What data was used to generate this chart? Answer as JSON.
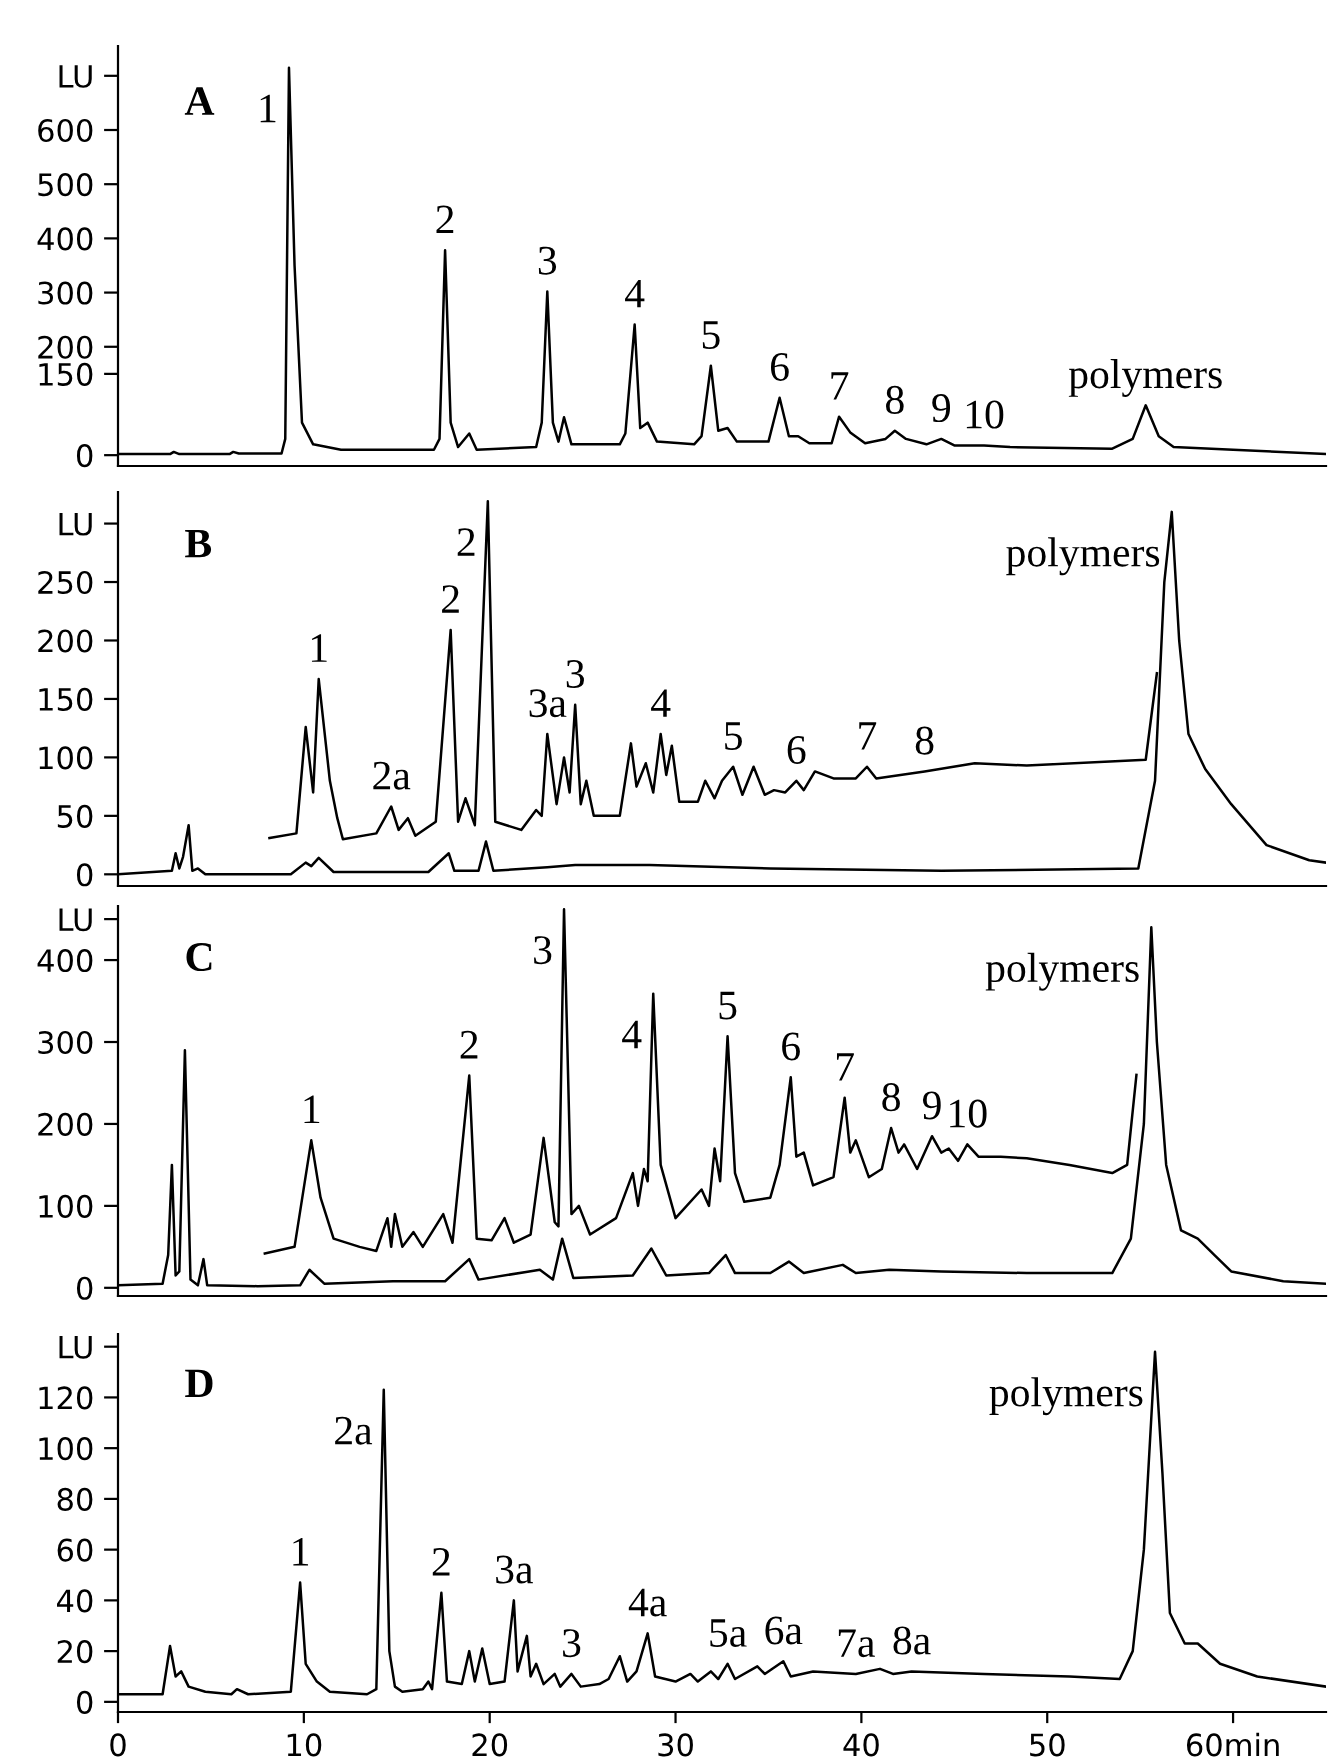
{
  "chart_data": [
    {
      "type": "line",
      "title": "A",
      "xlim": [
        0,
        65
      ],
      "ylim": [
        -20,
        755
      ],
      "tick_labels": "y",
      "yticks": [
        0,
        150,
        200,
        300,
        400,
        500,
        600,
        {
          "value": 700,
          "label": "LU"
        }
      ],
      "series": [
        {
          "color": "#000000",
          "x": [
            0,
            2.8,
            3.0,
            3.3,
            6.0,
            6.2,
            6.5,
            8.8,
            9.0,
            9.2,
            9.5,
            9.9,
            10.5,
            12,
            17.0,
            17.3,
            17.6,
            17.9,
            18.3,
            18.9,
            19.3,
            22.5,
            22.8,
            23.1,
            23.4,
            23.7,
            24.0,
            24.4,
            27.0,
            27.3,
            27.8,
            28.1,
            28.5,
            29.0,
            31.0,
            31.4,
            31.9,
            32.3,
            32.8,
            33.3,
            35.0,
            35.6,
            36.1,
            36.6,
            37.2,
            38.4,
            38.8,
            39.4,
            40.2,
            41.3,
            41.8,
            42.4,
            43.5,
            44.3,
            45.0,
            46.6,
            48,
            53.5,
            54.6,
            55.3,
            56.0,
            56.8,
            60,
            65
          ],
          "values": [
            2,
            2,
            6,
            2,
            2,
            6,
            3,
            3,
            30,
            715,
            350,
            60,
            20,
            10,
            10,
            30,
            378,
            60,
            15,
            40,
            10,
            15,
            60,
            302,
            60,
            25,
            70,
            20,
            20,
            40,
            241,
            50,
            60,
            25,
            20,
            35,
            165,
            45,
            50,
            25,
            25,
            106,
            35,
            35,
            22,
            22,
            71,
            42,
            22,
            30,
            45,
            30,
            20,
            30,
            18,
            18,
            15,
            12,
            30,
            92,
            35,
            15,
            10,
            2
          ]
        }
      ],
      "annotations": [
        {
          "text": "1",
          "x": 9.2,
          "y": 715
        },
        {
          "text": "2",
          "x": 17.6,
          "y": 378
        },
        {
          "text": "3",
          "x": 23.1,
          "y": 302
        },
        {
          "text": "4",
          "x": 27.8,
          "y": 241
        },
        {
          "text": "5",
          "x": 31.9,
          "y": 165
        },
        {
          "text": "6",
          "x": 35.6,
          "y": 106
        },
        {
          "text": "7",
          "x": 38.8,
          "y": 71
        },
        {
          "text": "8",
          "x": 41.8,
          "y": 45
        },
        {
          "text": "9",
          "x": 44.3,
          "y": 30
        },
        {
          "text": "10",
          "x": 46.6,
          "y": 18
        },
        {
          "text": "polymers",
          "x": 55.3,
          "y": 92
        }
      ]
    },
    {
      "type": "line",
      "title": "B",
      "xlim": [
        0,
        65
      ],
      "ylim": [
        -10,
        327
      ],
      "tick_labels": "y",
      "yticks": [
        0,
        50,
        100,
        150,
        200,
        250,
        {
          "value": 300,
          "label": "LU"
        }
      ],
      "series": [
        {
          "color": "#000000",
          "x": [
            8.15,
            9.6,
            10.1,
            10.5,
            10.8,
            11.4,
            11.8,
            12.1,
            13.9,
            14.7,
            15.1,
            15.6,
            16.0,
            17.1,
            17.9,
            18.3,
            18.7,
            19.2,
            19.9,
            20.3,
            21.7,
            22.5,
            22.8,
            23.1,
            23.6,
            24.0,
            24.3,
            24.6,
            24.9,
            25.2,
            25.6,
            27.0,
            27.6,
            27.9,
            28.4,
            28.8,
            29.2,
            29.5,
            29.8,
            30.2,
            31.2,
            31.6,
            32.1,
            32.5,
            33.1,
            33.6,
            34.2,
            34.8,
            35.3,
            35.9,
            36.5,
            36.9,
            37.5,
            38.5,
            39.7,
            40.3,
            40.8,
            43.4,
            46.1,
            48.9,
            55.3,
            55.9
          ],
          "values": [
            31,
            35,
            126,
            70,
            167,
            80,
            48,
            30,
            35,
            58,
            38,
            48,
            33,
            45,
            209,
            45,
            65,
            42,
            319,
            45,
            38,
            55,
            50,
            120,
            60,
            100,
            70,
            145,
            60,
            80,
            50,
            50,
            112,
            75,
            95,
            70,
            120,
            85,
            110,
            62,
            62,
            80,
            65,
            80,
            92,
            68,
            92,
            68,
            72,
            70,
            80,
            72,
            88,
            82,
            82,
            92,
            82,
            88,
            95,
            93,
            98,
            172
          ]
        },
        {
          "color": "#000000",
          "x": [
            0,
            2.9,
            3.1,
            3.3,
            3.5,
            3.8,
            4.0,
            4.3,
            4.7,
            9.3,
            10.1,
            10.4,
            10.8,
            11.6,
            16.7,
            17.8,
            18.1,
            19.4,
            19.8,
            20.2,
            23.1,
            24.6,
            28.6,
            35.1,
            44.3,
            54.9,
            55.8,
            56.3,
            56.7,
            57.1,
            57.6,
            58.5,
            59.9,
            61.8,
            64.1,
            65
          ],
          "values": [
            0,
            3,
            18,
            5,
            15,
            42,
            3,
            5,
            0,
            0,
            10,
            7,
            14,
            2,
            2,
            18,
            3,
            3,
            28,
            3,
            6,
            8,
            8,
            5,
            3,
            5,
            80,
            250,
            310,
            200,
            120,
            90,
            60,
            25,
            12,
            10
          ]
        }
      ],
      "annotations": [
        {
          "text": "1",
          "x": 10.8,
          "y": 167
        },
        {
          "text": "2a",
          "x": 14.7,
          "y": 58
        },
        {
          "text": "2",
          "x": 17.9,
          "y": 209
        },
        {
          "text": "2",
          "x": 19.9,
          "y": 319
        },
        {
          "text": "3a",
          "x": 23.1,
          "y": 120
        },
        {
          "text": "3",
          "x": 24.6,
          "y": 145
        },
        {
          "text": "4",
          "x": 29.2,
          "y": 120
        },
        {
          "text": "5",
          "x": 33.1,
          "y": 92
        },
        {
          "text": "6",
          "x": 36.5,
          "y": 80
        },
        {
          "text": "7",
          "x": 40.3,
          "y": 92
        },
        {
          "text": "8",
          "x": 43.4,
          "y": 88
        },
        {
          "text": "polymers",
          "x": 56.7,
          "y": 310
        }
      ]
    },
    {
      "type": "line",
      "title": "C",
      "xlim": [
        0,
        65
      ],
      "ylim": [
        -10,
        466
      ],
      "tick_labels": "y",
      "yticks": [
        0,
        100,
        200,
        300,
        400,
        {
          "value": 450,
          "label": "LU"
        }
      ],
      "series": [
        {
          "color": "#000000",
          "x": [
            7.9,
            9.5,
            10.4,
            10.9,
            11.6,
            13.0,
            13.9,
            14.5,
            14.7,
            14.9,
            15.3,
            15.9,
            16.4,
            17.5,
            18.0,
            18.9,
            19.3,
            20.1,
            20.8,
            21.3,
            22.2,
            22.9,
            23.5,
            23.7,
            24.0,
            24.4,
            24.8,
            25.4,
            26.8,
            27.7,
            27.98,
            28.3,
            28.5,
            28.8,
            29.2,
            30.0,
            31.4,
            31.8,
            32.1,
            32.4,
            32.8,
            33.2,
            33.7,
            35.1,
            35.6,
            36.2,
            36.5,
            36.9,
            37.4,
            38.5,
            39.1,
            39.4,
            39.7,
            40.4,
            41.1,
            41.6,
            42.0,
            42.3,
            43.0,
            43.8,
            44.3,
            44.7,
            45.2,
            45.7,
            46.3,
            47.5,
            48.9,
            51.2,
            53.5,
            54.3,
            54.8
          ],
          "values": [
            42,
            50,
            180,
            110,
            60,
            50,
            45,
            85,
            50,
            90,
            50,
            68,
            50,
            90,
            55,
            259,
            60,
            58,
            85,
            55,
            65,
            183,
            80,
            75,
            462,
            90,
            100,
            65,
            85,
            140,
            100,
            145,
            130,
            359,
            150,
            85,
            120,
            100,
            170,
            130,
            307,
            140,
            105,
            110,
            150,
            257,
            160,
            165,
            125,
            135,
            232,
            165,
            180,
            135,
            145,
            195,
            165,
            175,
            145,
            185,
            165,
            170,
            155,
            175,
            160,
            160,
            158,
            150,
            140,
            150,
            260
          ]
        },
        {
          "color": "#000000",
          "x": [
            0,
            2.4,
            2.7,
            2.9,
            3.1,
            3.3,
            3.6,
            3.9,
            4.3,
            4.6,
            4.8,
            7.5,
            9.8,
            10.3,
            11.1,
            14.8,
            17.6,
            18.9,
            19.4,
            22.7,
            23.4,
            23.9,
            24.5,
            27.7,
            28.7,
            29.5,
            31.8,
            32.7,
            33.2,
            35.1,
            36.1,
            36.9,
            39.0,
            39.7,
            41.5,
            44.3,
            48.9,
            53.5,
            54.5,
            55.2,
            55.6,
            55.9,
            56.4,
            57.2,
            58.1,
            59.0,
            59.9,
            62.7,
            65.0
          ],
          "values": [
            3,
            5,
            40,
            150,
            15,
            20,
            290,
            10,
            3,
            35,
            3,
            2,
            3,
            22,
            5,
            8,
            8,
            35,
            10,
            22,
            10,
            60,
            12,
            15,
            48,
            15,
            18,
            40,
            18,
            18,
            32,
            18,
            28,
            18,
            22,
            20,
            18,
            18,
            60,
            200,
            440,
            300,
            150,
            70,
            60,
            40,
            20,
            8,
            5
          ]
        }
      ],
      "annotations": [
        {
          "text": "1",
          "x": 10.4,
          "y": 180
        },
        {
          "text": "2",
          "x": 18.9,
          "y": 259
        },
        {
          "text": "3",
          "x": 24.0,
          "y": 462
        },
        {
          "text": "4",
          "x": 28.8,
          "y": 359
        },
        {
          "text": "5",
          "x": 32.8,
          "y": 307
        },
        {
          "text": "6",
          "x": 36.2,
          "y": 257
        },
        {
          "text": "7",
          "x": 39.1,
          "y": 232
        },
        {
          "text": "8",
          "x": 41.6,
          "y": 195
        },
        {
          "text": "9",
          "x": 43.8,
          "y": 185
        },
        {
          "text": "10",
          "x": 45.7,
          "y": 175
        },
        {
          "text": "polymers",
          "x": 55.6,
          "y": 440
        }
      ]
    },
    {
      "type": "line",
      "title": "D",
      "xlim": [
        0,
        65
      ],
      "ylim": [
        -4,
        145
      ],
      "xticks": [
        0,
        10,
        20,
        30,
        40,
        50,
        {
          "value": 60,
          "label": "60min"
        }
      ],
      "yticks": [
        0,
        20,
        40,
        60,
        80,
        100,
        120,
        {
          "value": 140,
          "label": "LU"
        }
      ],
      "series": [
        {
          "color": "#000000",
          "x": [
            0,
            2.4,
            2.8,
            3.1,
            3.4,
            3.8,
            4.7,
            6.1,
            6.4,
            7.0,
            9.3,
            9.8,
            10.1,
            10.7,
            11.4,
            13.4,
            13.9,
            14.3,
            14.6,
            14.9,
            15.3,
            16.4,
            16.7,
            16.9,
            17.4,
            17.7,
            18.5,
            18.9,
            19.2,
            19.6,
            20.0,
            20.8,
            21.3,
            21.5,
            22.0,
            22.2,
            22.5,
            22.9,
            23.5,
            23.8,
            24.4,
            24.9,
            25.9,
            26.4,
            27.0,
            27.4,
            27.9,
            28.5,
            28.9,
            30.0,
            30.8,
            31.2,
            31.9,
            32.3,
            32.8,
            33.2,
            34.4,
            34.8,
            35.8,
            36.2,
            37.4,
            39.7,
            41.0,
            41.7,
            42.7,
            46.6,
            51.2,
            53.9,
            54.6,
            55.2,
            55.8,
            56.2,
            56.6,
            57.4,
            58.1,
            59.3,
            61.3,
            65.0
          ],
          "values": [
            3,
            3,
            22,
            10,
            12,
            6,
            4,
            3,
            5,
            3,
            4,
            47,
            15,
            8,
            4,
            3,
            5,
            123,
            20,
            6,
            4,
            5,
            8,
            5,
            43,
            8,
            7,
            20,
            8,
            21,
            7,
            8,
            40,
            12,
            26,
            10,
            15,
            7,
            11,
            6,
            11,
            6,
            7,
            9,
            18,
            8,
            12,
            27,
            10,
            8,
            11,
            8,
            12,
            9,
            15,
            9,
            14,
            11,
            16,
            10,
            12,
            11,
            13,
            11,
            12,
            11,
            10,
            9,
            20,
            60,
            138,
            90,
            35,
            23,
            23,
            15,
            10,
            6
          ]
        }
      ],
      "annotations": [
        {
          "text": "1",
          "x": 9.8,
          "y": 47
        },
        {
          "text": "2a",
          "x": 14.3,
          "y": 123
        },
        {
          "text": "2",
          "x": 17.4,
          "y": 43
        },
        {
          "text": "3a",
          "x": 21.3,
          "y": 40
        },
        {
          "text": "3",
          "x": 24.4,
          "y": 11
        },
        {
          "text": "4a",
          "x": 28.5,
          "y": 27
        },
        {
          "text": "5a",
          "x": 32.8,
          "y": 15
        },
        {
          "text": "6a",
          "x": 35.8,
          "y": 16
        },
        {
          "text": "7a",
          "x": 39.7,
          "y": 11
        },
        {
          "text": "8a",
          "x": 42.7,
          "y": 12
        },
        {
          "text": "polymers",
          "x": 55.8,
          "y": 138
        }
      ]
    }
  ]
}
